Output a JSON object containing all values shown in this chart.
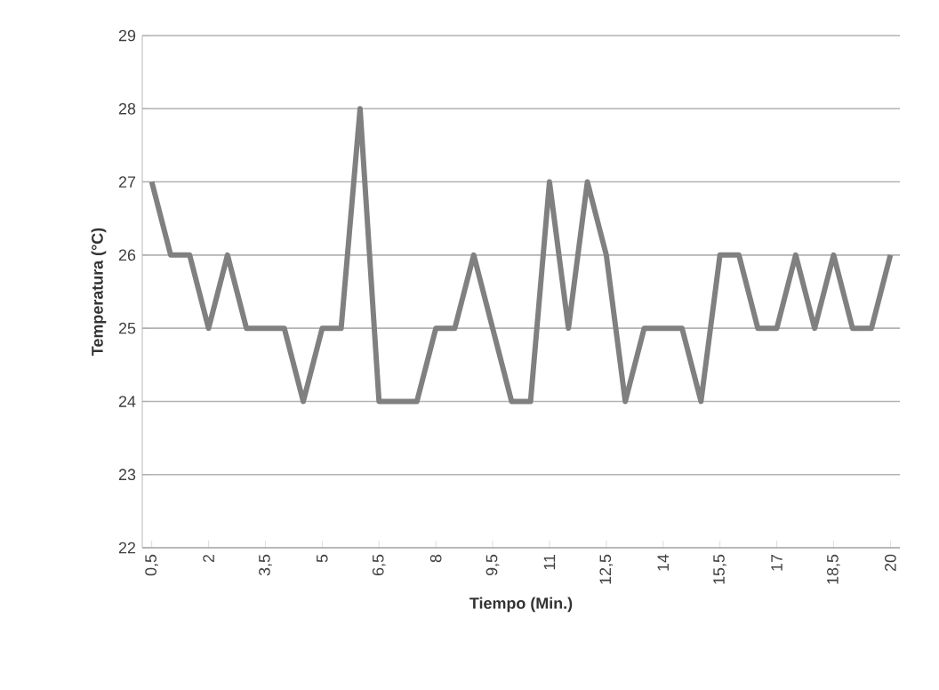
{
  "chart_data": {
    "type": "line",
    "xlabel": "Tiempo (Min.)",
    "ylabel": "Temperatura (°C)",
    "categories": [
      "0,5",
      null,
      null,
      "2",
      null,
      null,
      "3,5",
      null,
      null,
      "5",
      null,
      null,
      "6,5",
      null,
      null,
      "8",
      null,
      null,
      "9,5",
      null,
      null,
      "11",
      null,
      null,
      "12,5",
      null,
      null,
      "14",
      null,
      null,
      "15,5",
      null,
      null,
      "17",
      null,
      null,
      "18,5",
      null,
      null,
      "20"
    ],
    "values": [
      27,
      26,
      26,
      25,
      26,
      25,
      25,
      25,
      24,
      25,
      25,
      28,
      24,
      24,
      24,
      25,
      25,
      26,
      25,
      24,
      24,
      27,
      25,
      27,
      26,
      24,
      25,
      25,
      25,
      24,
      26,
      26,
      25,
      25,
      26,
      25,
      26,
      25,
      25,
      26
    ],
    "color": "#808080",
    "ylim": [
      22,
      29
    ],
    "yticks": [
      22,
      23,
      24,
      25,
      26,
      27,
      28,
      29
    ],
    "grid": "y",
    "marker": "none",
    "line_style": "solid"
  }
}
